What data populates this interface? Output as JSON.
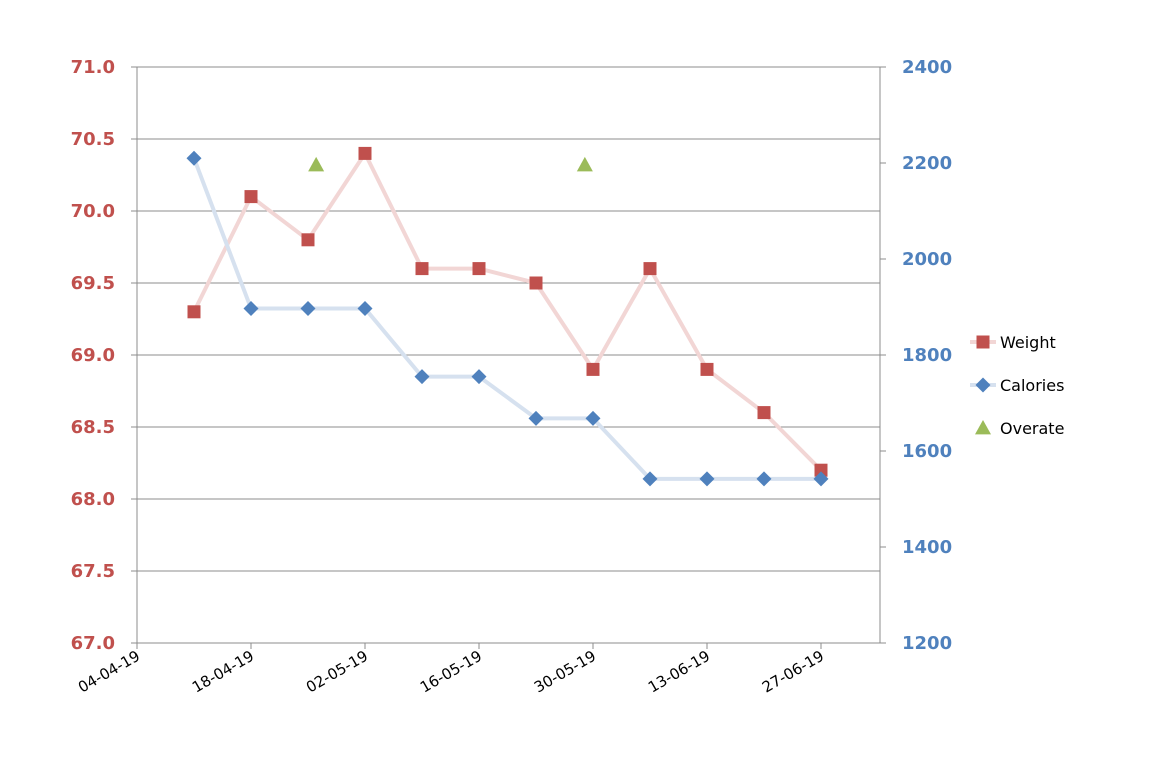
{
  "chart_data": {
    "type": "line",
    "x_axis": {
      "type": "date",
      "ticks": [
        "04-04-19",
        "18-04-19",
        "02-05-19",
        "16-05-19",
        "30-05-19",
        "13-06-19",
        "27-06-19"
      ]
    },
    "y_left": {
      "ylim": [
        67.0,
        71.0
      ],
      "ticks": [
        "67.0",
        "67.5",
        "68.0",
        "68.5",
        "69.0",
        "69.5",
        "70.0",
        "70.5",
        "71.0"
      ],
      "color": "#c0504d"
    },
    "y_right": {
      "ylim": [
        1200,
        2400
      ],
      "ticks": [
        "1200",
        "1400",
        "1600",
        "1800",
        "2000",
        "2200",
        "2400"
      ],
      "color": "#4f81bd"
    },
    "grid": true,
    "legend_position": "right",
    "series": [
      {
        "name": "Weight",
        "axis": "left",
        "marker": "square",
        "color": "#c0504d",
        "line_color": "#f2d6d5",
        "points": [
          {
            "x": "11-04-19",
            "y": 69.3
          },
          {
            "x": "18-04-19",
            "y": 70.1
          },
          {
            "x": "25-04-19",
            "y": 69.8
          },
          {
            "x": "02-05-19",
            "y": 70.4
          },
          {
            "x": "09-05-19",
            "y": 69.6
          },
          {
            "x": "16-05-19",
            "y": 69.6
          },
          {
            "x": "23-05-19",
            "y": 69.5
          },
          {
            "x": "30-05-19",
            "y": 68.9
          },
          {
            "x": "06-06-19",
            "y": 69.6
          },
          {
            "x": "13-06-19",
            "y": 68.9
          },
          {
            "x": "20-06-19",
            "y": 68.6
          },
          {
            "x": "27-06-19",
            "y": 68.2
          }
        ]
      },
      {
        "name": "Calories",
        "axis": "right",
        "marker": "diamond",
        "color": "#4f81bd",
        "line_color": "#d6e1ef",
        "points": [
          {
            "x": "11-04-19",
            "y": 2210
          },
          {
            "x": "18-04-19",
            "y": 1897
          },
          {
            "x": "25-04-19",
            "y": 1897
          },
          {
            "x": "02-05-19",
            "y": 1897
          },
          {
            "x": "09-05-19",
            "y": 1755
          },
          {
            "x": "16-05-19",
            "y": 1755
          },
          {
            "x": "23-05-19",
            "y": 1668
          },
          {
            "x": "30-05-19",
            "y": 1668
          },
          {
            "x": "06-06-19",
            "y": 1542
          },
          {
            "x": "13-06-19",
            "y": 1542
          },
          {
            "x": "20-06-19",
            "y": 1542
          },
          {
            "x": "27-06-19",
            "y": 1542
          }
        ]
      },
      {
        "name": "Overate",
        "axis": "left",
        "marker": "triangle",
        "color": "#9bbb59",
        "points": [
          {
            "x": "26-04-19",
            "y": 70.32
          },
          {
            "x": "29-05-19",
            "y": 70.32
          }
        ]
      }
    ]
  }
}
